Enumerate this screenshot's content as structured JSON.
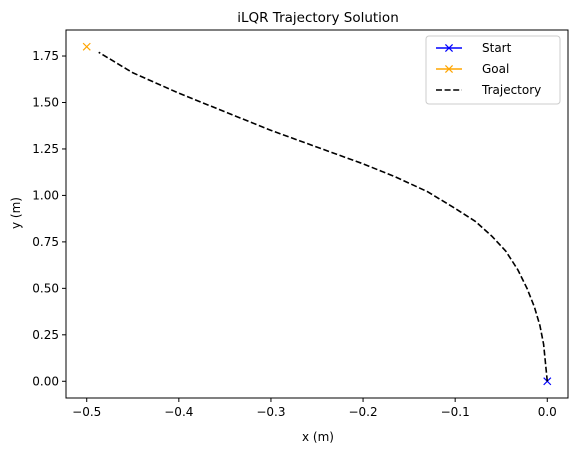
{
  "chart_data": {
    "type": "line",
    "title": "iLQR Trajectory Solution",
    "xlabel": "x (m)",
    "ylabel": "y (m)",
    "xlim": [
      -0.5225,
      0.0225
    ],
    "ylim": [
      -0.09,
      1.89
    ],
    "x_ticks": [
      -0.5,
      -0.4,
      -0.3,
      -0.2,
      -0.1,
      0.0
    ],
    "x_tick_labels": [
      "−0.5",
      "−0.4",
      "−0.3",
      "−0.2",
      "−0.1",
      "0.0"
    ],
    "y_ticks": [
      0.0,
      0.25,
      0.5,
      0.75,
      1.0,
      1.25,
      1.5,
      1.75
    ],
    "y_tick_labels": [
      "0.00",
      "0.25",
      "0.50",
      "0.75",
      "1.00",
      "1.25",
      "1.50",
      "1.75"
    ],
    "grid": false,
    "legend_position": "top-right",
    "legend": [
      {
        "label": "Start",
        "color": "#0000ff",
        "style": "solid",
        "marker": "x"
      },
      {
        "label": "Goal",
        "color": "#ffa500",
        "style": "solid",
        "marker": "x"
      },
      {
        "label": "Trajectory",
        "color": "#000000",
        "style": "dashed",
        "marker": "none"
      }
    ],
    "series": [
      {
        "name": "Start",
        "color": "#0000ff",
        "marker": "x",
        "x": [
          0.0
        ],
        "y": [
          0.0
        ]
      },
      {
        "name": "Goal",
        "color": "#ffa500",
        "marker": "x",
        "x": [
          -0.5
        ],
        "y": [
          1.8
        ]
      },
      {
        "name": "Trajectory",
        "color": "#000000",
        "style": "dashed",
        "x": [
          0.0,
          -0.002,
          -0.004,
          -0.008,
          -0.014,
          -0.022,
          -0.032,
          -0.045,
          -0.06,
          -0.078,
          -0.1,
          -0.13,
          -0.165,
          -0.2,
          -0.25,
          -0.3,
          -0.35,
          -0.4,
          -0.45,
          -0.487
        ],
        "y": [
          0.0,
          0.1,
          0.2,
          0.3,
          0.4,
          0.5,
          0.6,
          0.7,
          0.78,
          0.86,
          0.93,
          1.02,
          1.1,
          1.17,
          1.26,
          1.35,
          1.45,
          1.55,
          1.66,
          1.77
        ]
      }
    ]
  }
}
